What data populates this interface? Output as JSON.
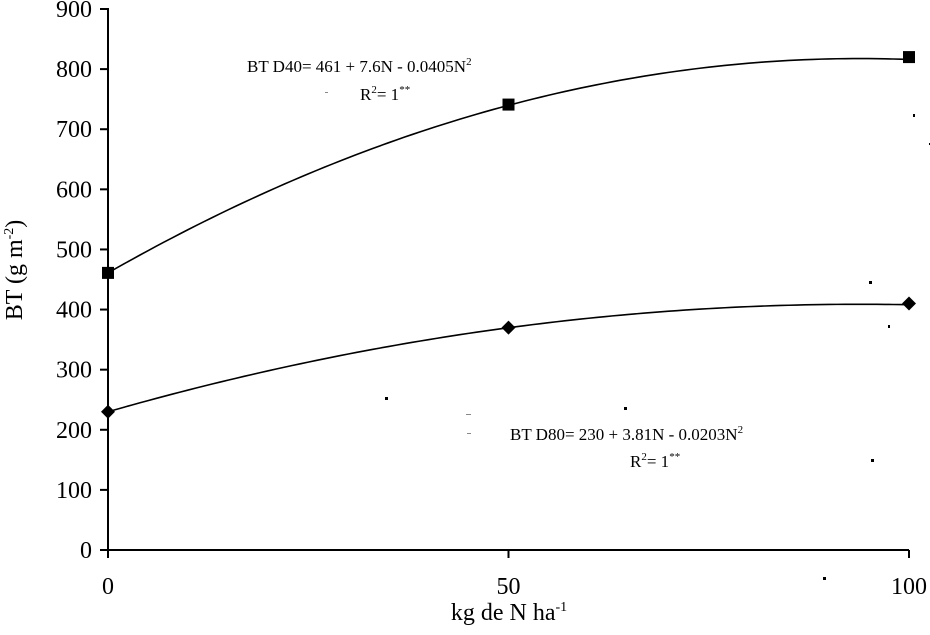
{
  "chart_data": {
    "type": "line",
    "title": "",
    "xlabel": {
      "main": "kg de N ha",
      "sup": "-1"
    },
    "ylabel": {
      "main": "BT (g m",
      "sup": "-2",
      "close": ")"
    },
    "xlim": [
      0,
      100
    ],
    "ylim": [
      0,
      900
    ],
    "xticks": [
      0,
      50,
      100
    ],
    "yticks": [
      0,
      100,
      200,
      300,
      400,
      500,
      600,
      700,
      800,
      900
    ],
    "grid": false,
    "legend": "none",
    "series": [
      {
        "marker": "square",
        "x": [
          0,
          50,
          100
        ],
        "y": [
          461,
          741,
          820
        ],
        "fit": {
          "a": 461,
          "b": 7.6,
          "c": -0.0405
        },
        "equation": {
          "main": "BT D40= 461 + 7.6N - 0.0405N",
          "sup": "2"
        },
        "r2": {
          "pre": "R",
          "sup1": "2",
          "mid": "= 1",
          "sup2": "**"
        }
      },
      {
        "marker": "diamond",
        "x": [
          0,
          50,
          100
        ],
        "y": [
          230,
          370,
          410
        ],
        "fit": {
          "a": 230,
          "b": 3.81,
          "c": -0.0203
        },
        "equation": {
          "main": "BT D80= 230 + 3.81N - 0.0203N",
          "sup": "2"
        },
        "r2": {
          "pre": "R",
          "sup1": "2",
          "mid": "= 1",
          "sup2": "**"
        }
      }
    ]
  }
}
